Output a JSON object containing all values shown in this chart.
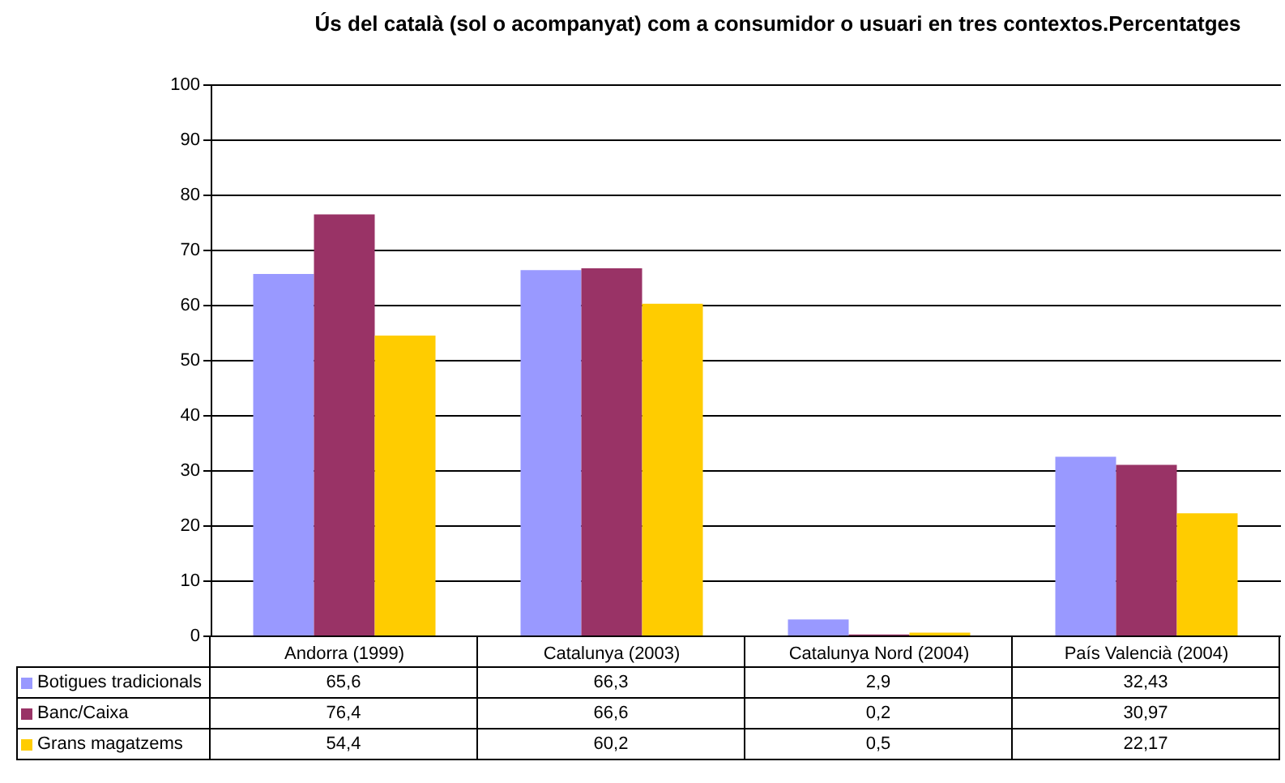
{
  "chart_data": {
    "type": "bar",
    "title": "Ús del català (sol o acompanyat) com a consumidor o usuari en tres contextos.Percentatges",
    "categories": [
      "Andorra (1999)",
      "Catalunya (2003)",
      "Catalunya Nord (2004)",
      "País Valencià (2004)"
    ],
    "series": [
      {
        "name": "Botigues tradicionals",
        "color": "#9999ff",
        "values": [
          65.6,
          66.3,
          2.9,
          32.43
        ],
        "value_labels": [
          "65,6",
          "66,3",
          "2,9",
          "32,43"
        ]
      },
      {
        "name": "Banc/Caixa",
        "color": "#993366",
        "values": [
          76.4,
          66.6,
          0.2,
          30.97
        ],
        "value_labels": [
          "76,4",
          "66,6",
          "0,2",
          "30,97"
        ]
      },
      {
        "name": "Grans magatzems",
        "color": "#ffcc00",
        "values": [
          54.4,
          60.2,
          0.5,
          22.17
        ],
        "value_labels": [
          "54,4",
          "60,2",
          "0,5",
          "22,17"
        ]
      }
    ],
    "ylim": [
      0,
      100
    ],
    "yticks": [
      0,
      10,
      20,
      30,
      40,
      50,
      60,
      70,
      80,
      90,
      100
    ],
    "grid": "y",
    "legend": "bottom"
  }
}
